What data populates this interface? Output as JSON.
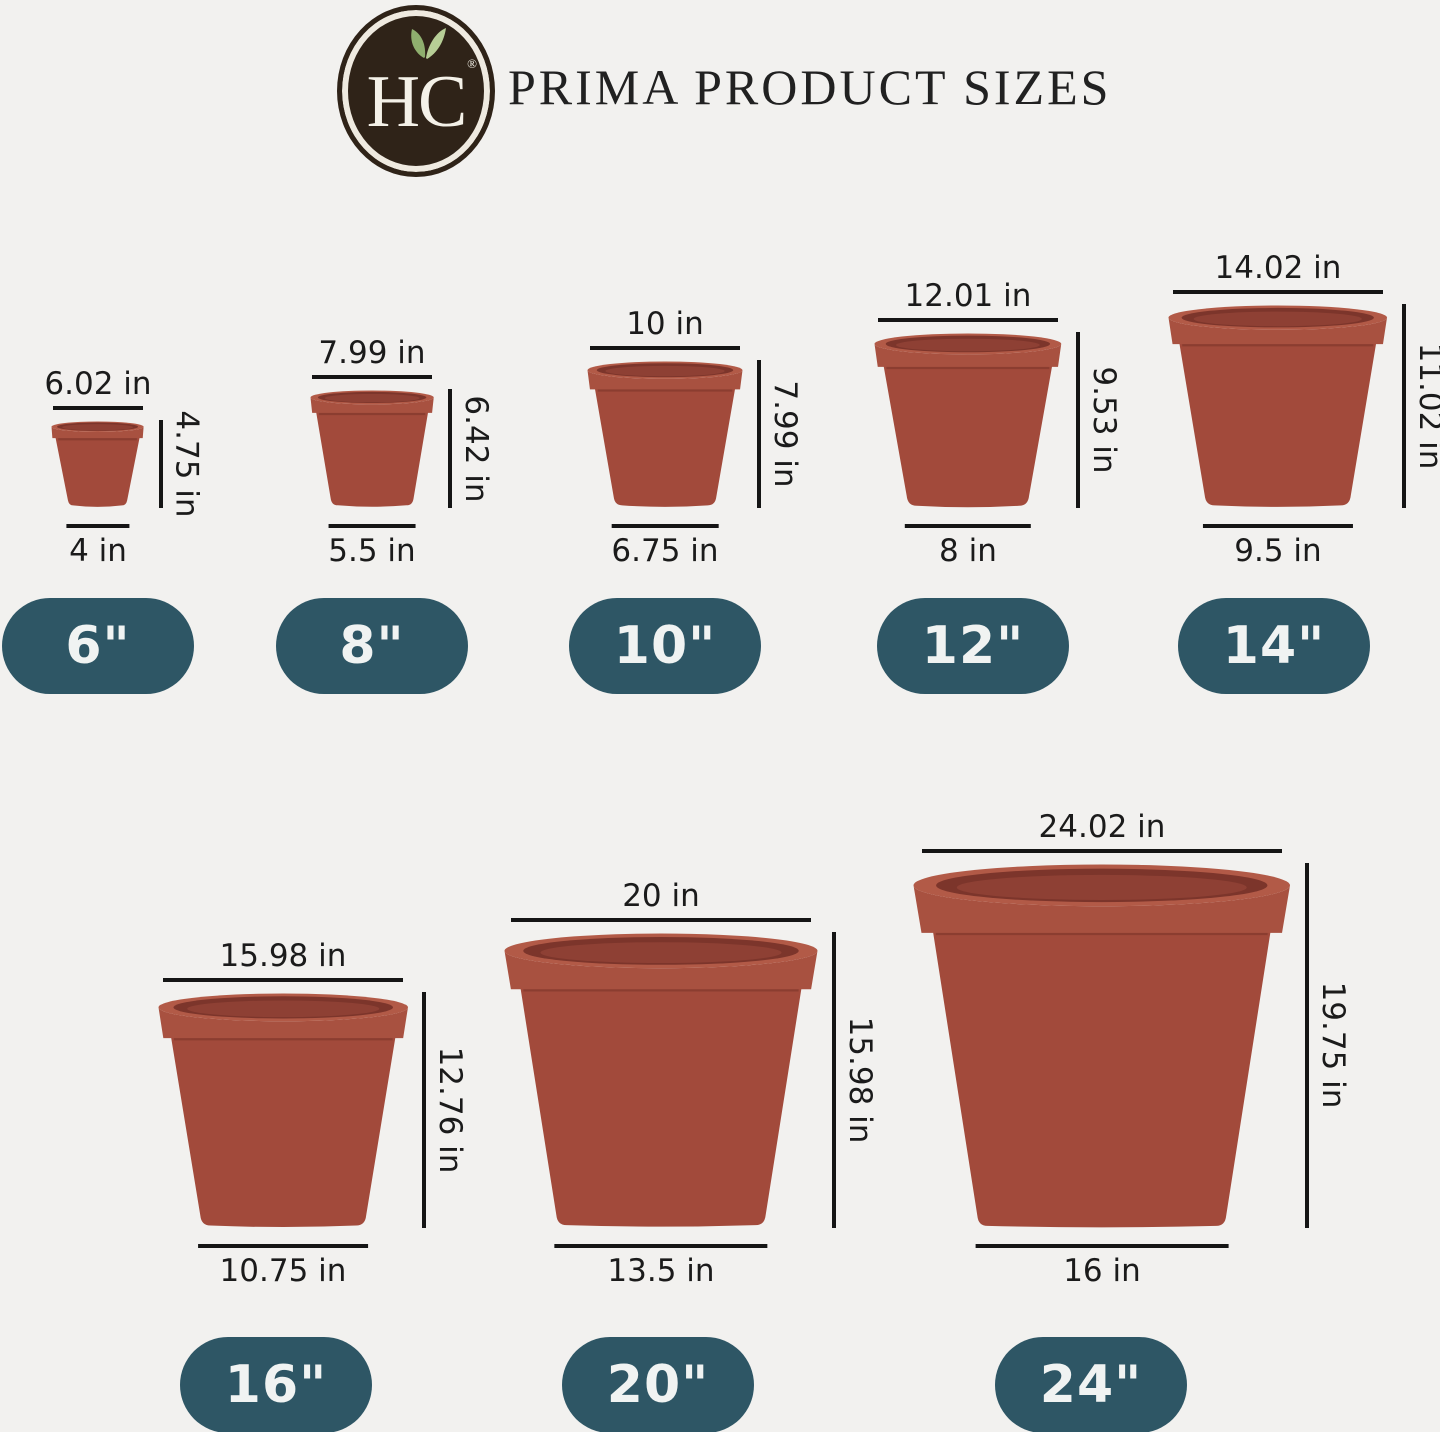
{
  "header": {
    "logo_text": "HC",
    "logo_reg": "®",
    "title": "PRIMA PRODUCT SIZES"
  },
  "colors": {
    "background": "#F2F1EF",
    "pot_body": "#A24A3B",
    "pot_rim_band": "#A85140",
    "pot_rim_top": "#B25A47",
    "pot_opening_dark": "#7C352B",
    "pot_opening_mid": "#8E4034",
    "dimension_line": "#151515",
    "dimension_text": "#1B1B1B",
    "badge_background": "#2E5665",
    "badge_text": "#F0F3F2",
    "logo_background": "#2F2318",
    "logo_ring": "#EFEAE0",
    "logo_text_color": "#F4F1E8",
    "leaf_light": "#B7CE96",
    "leaf_dark": "#8FAF6E",
    "title_color": "#212121",
    "footer_strip": "#FFFFFF"
  },
  "pots": [
    {
      "name": "6 inch pot",
      "badge": "6\"",
      "top_label": "6.02 in",
      "height_label": "4.75 in",
      "bottom_label": "4 in",
      "top_in": 6.02,
      "height_in": 4.75,
      "bottom_in": 4
    },
    {
      "name": "8 inch pot",
      "badge": "8\"",
      "top_label": "7.99 in",
      "height_label": "6.42 in",
      "bottom_label": "5.5 in",
      "top_in": 7.99,
      "height_in": 6.42,
      "bottom_in": 5.5
    },
    {
      "name": "10 inch pot",
      "badge": "10\"",
      "top_label": "10 in",
      "height_label": "7.99 in",
      "bottom_label": "6.75 in",
      "top_in": 10,
      "height_in": 7.99,
      "bottom_in": 6.75
    },
    {
      "name": "12 inch pot",
      "badge": "12\"",
      "top_label": "12.01 in",
      "height_label": "9.53 in",
      "bottom_label": "8 in",
      "top_in": 12.01,
      "height_in": 9.53,
      "bottom_in": 8
    },
    {
      "name": "14 inch pot",
      "badge": "14\"",
      "top_label": "14.02 in",
      "height_label": "11.02 in",
      "bottom_label": "9.5 in",
      "top_in": 14.02,
      "height_in": 11.02,
      "bottom_in": 9.5
    },
    {
      "name": "16 inch pot",
      "badge": "16\"",
      "top_label": "15.98 in",
      "height_label": "12.76 in",
      "bottom_label": "10.75 in",
      "top_in": 15.98,
      "height_in": 12.76,
      "bottom_in": 10.75
    },
    {
      "name": "20 inch pot",
      "badge": "20\"",
      "top_label": "20 in",
      "height_label": "15.98 in",
      "bottom_label": "13.5 in",
      "top_in": 20,
      "height_in": 15.98,
      "bottom_in": 13.5
    },
    {
      "name": "24 inch pot",
      "badge": "24\"",
      "top_label": "24.02 in",
      "height_label": "19.75 in",
      "bottom_label": "16 in",
      "top_in": 24.02,
      "height_in": 19.75,
      "bottom_in": 16
    }
  ]
}
